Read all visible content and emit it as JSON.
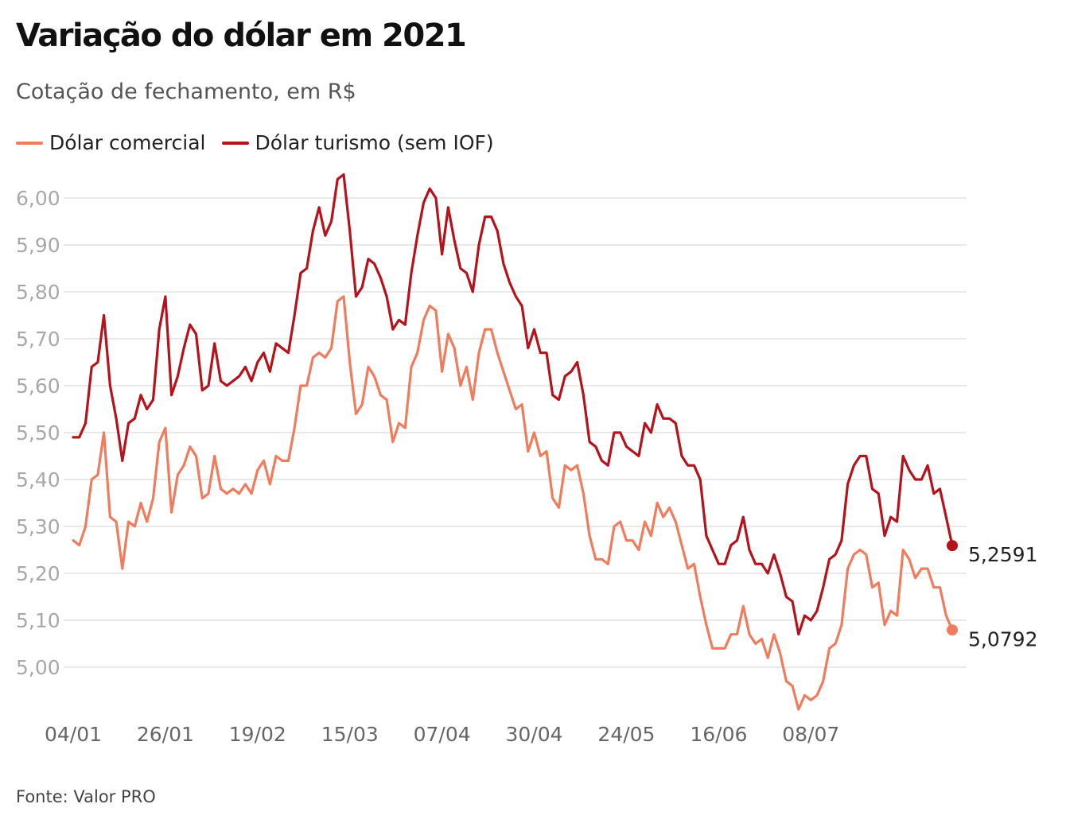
{
  "header": {
    "title": "Variação do dólar em 2021",
    "subtitle": "Cotação de fechamento, em R$"
  },
  "legend": [
    {
      "label": "Dólar comercial",
      "color": "#F07C5D"
    },
    {
      "label": "Dólar turismo (sem IOF)",
      "color": "#B5121B"
    }
  ],
  "footer": {
    "source": "Fonte: Valor PRO"
  },
  "chart_data": {
    "type": "line",
    "title": "Variação do dólar em 2021",
    "subtitle": "Cotação de fechamento, em R$",
    "xlabel": "",
    "ylabel": "",
    "ylim": [
      4.9,
      6.06
    ],
    "yticks": [
      5.0,
      5.1,
      5.2,
      5.3,
      5.4,
      5.5,
      5.6,
      5.7,
      5.8,
      5.9,
      6.0
    ],
    "ytick_labels": [
      "5,00",
      "5,10",
      "5,20",
      "5,30",
      "5,40",
      "5,50",
      "5,60",
      "5,70",
      "5,80",
      "5,90",
      "6,00"
    ],
    "xtick_labels": [
      {
        "label": "04/01",
        "index": 0
      },
      {
        "label": "26/01",
        "index": 15
      },
      {
        "label": "19/02",
        "index": 30
      },
      {
        "label": "15/03",
        "index": 45
      },
      {
        "label": "07/04",
        "index": 60
      },
      {
        "label": "30/04",
        "index": 75
      },
      {
        "label": "24/05",
        "index": 90
      },
      {
        "label": "16/06",
        "index": 105
      },
      {
        "label": "08/07",
        "index": 120
      }
    ],
    "grid": true,
    "legend_position": "top-left",
    "series": [
      {
        "name": "Dólar comercial",
        "color": "#F07C5D",
        "end_label": "5,0792",
        "values": [
          5.27,
          5.26,
          5.3,
          5.4,
          5.41,
          5.5,
          5.32,
          5.31,
          5.21,
          5.31,
          5.3,
          5.35,
          5.31,
          5.36,
          5.48,
          5.51,
          5.33,
          5.41,
          5.43,
          5.47,
          5.45,
          5.36,
          5.37,
          5.45,
          5.38,
          5.37,
          5.38,
          5.37,
          5.39,
          5.37,
          5.42,
          5.44,
          5.39,
          5.45,
          5.44,
          5.44,
          5.51,
          5.6,
          5.6,
          5.66,
          5.67,
          5.66,
          5.68,
          5.78,
          5.79,
          5.65,
          5.54,
          5.56,
          5.64,
          5.62,
          5.58,
          5.57,
          5.48,
          5.52,
          5.51,
          5.64,
          5.67,
          5.74,
          5.77,
          5.76,
          5.63,
          5.71,
          5.68,
          5.6,
          5.64,
          5.57,
          5.67,
          5.72,
          5.72,
          5.67,
          5.63,
          5.59,
          5.55,
          5.56,
          5.46,
          5.5,
          5.45,
          5.46,
          5.36,
          5.34,
          5.43,
          5.42,
          5.43,
          5.37,
          5.28,
          5.23,
          5.23,
          5.22,
          5.3,
          5.31,
          5.27,
          5.27,
          5.25,
          5.31,
          5.28,
          5.35,
          5.32,
          5.34,
          5.31,
          5.26,
          5.21,
          5.22,
          5.15,
          5.09,
          5.04,
          5.04,
          5.04,
          5.07,
          5.07,
          5.13,
          5.07,
          5.05,
          5.06,
          5.02,
          5.07,
          5.03,
          4.97,
          4.96,
          4.91,
          4.94,
          4.93,
          4.94,
          4.97,
          5.04,
          5.05,
          5.09,
          5.21,
          5.24,
          5.25,
          5.24,
          5.17,
          5.18,
          5.09,
          5.12,
          5.11,
          5.25,
          5.23,
          5.19,
          5.21,
          5.21,
          5.17,
          5.17,
          5.11,
          5.0792
        ]
      },
      {
        "name": "Dólar turismo (sem IOF)",
        "color": "#B5121B",
        "end_label": "5,2591",
        "values": [
          5.49,
          5.49,
          5.52,
          5.64,
          5.65,
          5.75,
          5.6,
          5.53,
          5.44,
          5.52,
          5.53,
          5.58,
          5.55,
          5.57,
          5.72,
          5.79,
          5.58,
          5.62,
          5.68,
          5.73,
          5.71,
          5.59,
          5.6,
          5.69,
          5.61,
          5.6,
          5.61,
          5.62,
          5.64,
          5.61,
          5.65,
          5.67,
          5.63,
          5.69,
          5.68,
          5.67,
          5.75,
          5.84,
          5.85,
          5.93,
          5.98,
          5.92,
          5.95,
          6.04,
          6.05,
          5.93,
          5.79,
          5.81,
          5.87,
          5.86,
          5.83,
          5.79,
          5.72,
          5.74,
          5.73,
          5.84,
          5.92,
          5.99,
          6.02,
          6.0,
          5.88,
          5.98,
          5.91,
          5.85,
          5.84,
          5.8,
          5.9,
          5.96,
          5.96,
          5.93,
          5.86,
          5.82,
          5.79,
          5.77,
          5.68,
          5.72,
          5.67,
          5.67,
          5.58,
          5.57,
          5.62,
          5.63,
          5.65,
          5.58,
          5.48,
          5.47,
          5.44,
          5.43,
          5.5,
          5.5,
          5.47,
          5.46,
          5.45,
          5.52,
          5.5,
          5.56,
          5.53,
          5.53,
          5.52,
          5.45,
          5.43,
          5.43,
          5.4,
          5.28,
          5.25,
          5.22,
          5.22,
          5.26,
          5.27,
          5.32,
          5.25,
          5.22,
          5.22,
          5.2,
          5.24,
          5.2,
          5.15,
          5.14,
          5.07,
          5.11,
          5.1,
          5.12,
          5.17,
          5.23,
          5.24,
          5.27,
          5.39,
          5.43,
          5.45,
          5.45,
          5.38,
          5.37,
          5.28,
          5.32,
          5.31,
          5.45,
          5.42,
          5.4,
          5.4,
          5.43,
          5.37,
          5.38,
          5.32,
          5.2591
        ]
      }
    ]
  }
}
